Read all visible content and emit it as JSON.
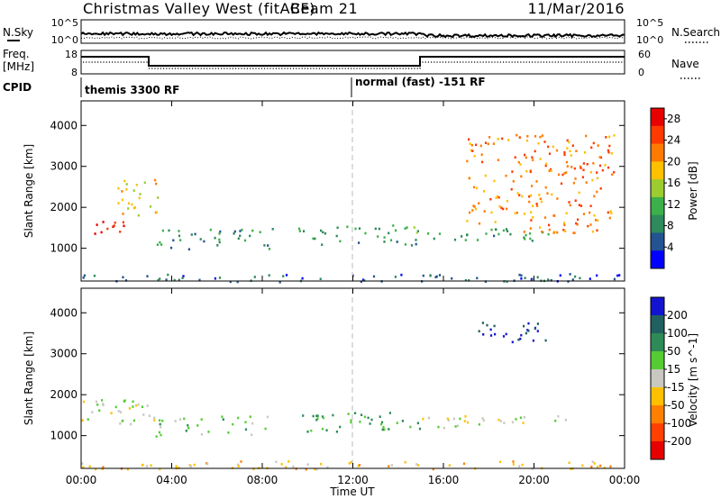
{
  "header": {
    "station": "Christmas Valley West (fitACF)",
    "beam": "Beam 21",
    "date": "11/Mar/2016"
  },
  "noise_panel": {
    "left_label": "N.Sky",
    "right_label": "N.Search",
    "left_ticks": [
      "10^5",
      "10^0"
    ],
    "right_ticks": [
      "10^5",
      "10^0"
    ]
  },
  "freq_panel": {
    "left_label_1": "Freq.",
    "left_label_2": "[MHz]",
    "left_ticks": [
      "18",
      "8"
    ],
    "right_ticks": [
      "60",
      "0"
    ],
    "right_label": "Nave"
  },
  "cpid": {
    "label": "CPID",
    "programs": [
      "themis 3300 RF",
      "normal (fast) -151 RF"
    ]
  },
  "chart_data": [
    {
      "type": "heatmap",
      "title": "Power",
      "xlabel": "Time UT",
      "ylabel": "Slant Range [km]",
      "x_ticks": [
        "00:00",
        "04:00",
        "08:00",
        "12:00",
        "16:00",
        "20:00",
        "00:00"
      ],
      "y_ticks": [
        1000,
        2000,
        3000,
        4000
      ],
      "ylim": [
        200,
        4600
      ],
      "colorbar_label": "Power [dB]",
      "colorbar_ticks": [
        4,
        8,
        12,
        16,
        20,
        24,
        28
      ],
      "colorbar_range": [
        0,
        30
      ],
      "colors": [
        "#0000ff",
        "#235390",
        "#2f8a5c",
        "#3cb04a",
        "#9ccc30",
        "#ffc000",
        "#ff7a00",
        "#ff3a00",
        "#e60000"
      ],
      "echo_regions": [
        {
          "t": [
            0.0,
            2.0
          ],
          "range": [
            1300,
            1700
          ],
          "power": 27
        },
        {
          "t": [
            1.5,
            3.5
          ],
          "range": [
            1800,
            2700
          ],
          "power": 18
        },
        {
          "t": [
            3.0,
            8.5
          ],
          "range": [
            1000,
            1500
          ],
          "power": 8
        },
        {
          "t": [
            9.5,
            15.0
          ],
          "range": [
            1100,
            1600
          ],
          "power": 10
        },
        {
          "t": [
            14.5,
            21.0
          ],
          "range": [
            1200,
            1500
          ],
          "power": 10
        },
        {
          "t": [
            17.0,
            23.5
          ],
          "range": [
            1400,
            3800
          ],
          "power": 22
        },
        {
          "t": [
            0.0,
            24.0
          ],
          "range": [
            200,
            400
          ],
          "power": 6
        }
      ]
    },
    {
      "type": "heatmap",
      "title": "Velocity",
      "xlabel": "Time UT",
      "ylabel": "Slant Range [km]",
      "x_ticks": [
        "00:00",
        "04:00",
        "08:00",
        "12:00",
        "16:00",
        "20:00",
        "00:00"
      ],
      "y_ticks": [
        1000,
        2000,
        3000,
        4000
      ],
      "ylim": [
        200,
        4600
      ],
      "colorbar_label": "Velocity [m s^-1]",
      "colorbar_ticks": [
        200,
        100,
        50,
        15,
        -15,
        -50,
        -100,
        -200
      ],
      "colors": [
        "#1414d0",
        "#206060",
        "#2e8b57",
        "#55cc33",
        "#c8c8c0",
        "#ffc000",
        "#ff8000",
        "#ff4000",
        "#e60000"
      ],
      "echo_regions": [
        {
          "t": [
            0.0,
            3.5
          ],
          "range": [
            1300,
            1900
          ],
          "velocity": 0
        },
        {
          "t": [
            3.0,
            8.5
          ],
          "range": [
            1000,
            1500
          ],
          "velocity": 30
        },
        {
          "t": [
            9.5,
            15.0
          ],
          "range": [
            1100,
            1600
          ],
          "velocity": 60
        },
        {
          "t": [
            15.0,
            21.5
          ],
          "range": [
            1200,
            1500
          ],
          "velocity": 0
        },
        {
          "t": [
            17.0,
            20.5
          ],
          "range": [
            3300,
            3800
          ],
          "velocity": 200
        },
        {
          "t": [
            0.0,
            24.0
          ],
          "range": [
            200,
            400
          ],
          "velocity": -30
        }
      ]
    }
  ]
}
